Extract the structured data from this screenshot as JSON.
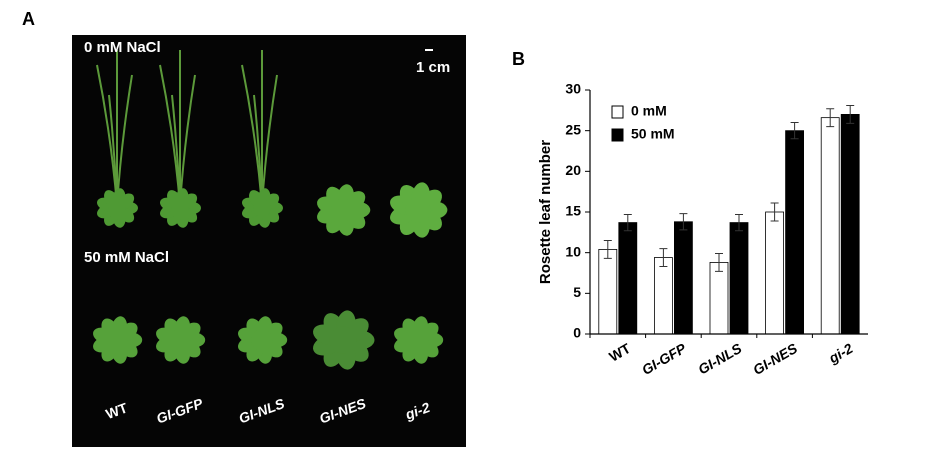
{
  "panel_a": {
    "label": "A",
    "top_label": "0 mM NaCl",
    "scale_label": "1 cm",
    "bottom_label": "50 mM NaCl",
    "genotypes": [
      "WT",
      "GI-GFP",
      "GI-NLS",
      "GI-NES",
      "gi-2"
    ]
  },
  "chart_data": {
    "type": "bar",
    "panel_label": "B",
    "y_label": "Rosette leaf number",
    "categories": [
      "WT",
      "GI-GFP",
      "GI-NLS",
      "GI-NES",
      "gi-2"
    ],
    "series": [
      {
        "name": "0 mM",
        "color": "#ffffff",
        "values": [
          10.4,
          9.4,
          8.8,
          15.0,
          26.6
        ],
        "errors": [
          1.1,
          1.1,
          1.1,
          1.1,
          1.1
        ]
      },
      {
        "name": "50 mM",
        "color": "#000000",
        "values": [
          13.7,
          13.8,
          13.7,
          25.0,
          27.0
        ],
        "errors": [
          1.0,
          1.0,
          1.0,
          1.0,
          1.1
        ]
      }
    ],
    "ylim": [
      0,
      30
    ],
    "yticks": [
      0,
      5,
      10,
      15,
      20,
      25,
      30
    ],
    "grid": false,
    "legend": "upper left"
  }
}
